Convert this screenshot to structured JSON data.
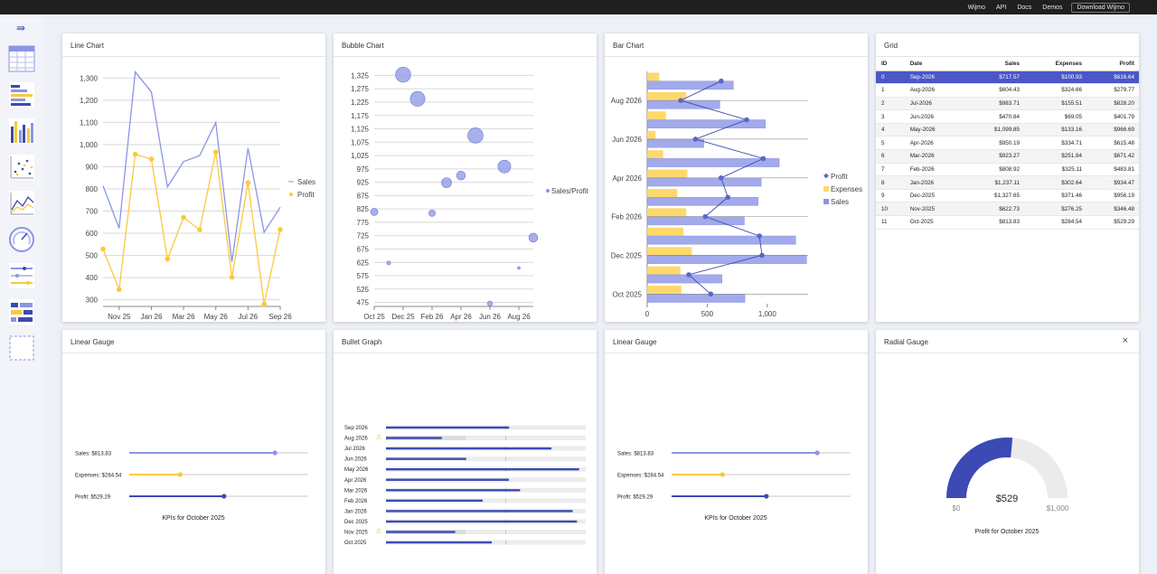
{
  "topnav": [
    "Wijmo",
    "API",
    "Docs",
    "Demos",
    "Download Wijmo"
  ],
  "sidebar": {
    "icons": [
      "menu-collapse-icon",
      "grid-tile-icon",
      "bar-chart-tile-icon",
      "column-chart-tile-icon",
      "scatter-tile-icon",
      "line-chart-tile-icon",
      "radial-gauge-tile-icon",
      "linear-gauge-tile-icon",
      "bullet-graph-tile-icon",
      "empty-tile-icon"
    ]
  },
  "colors": {
    "sales": "#8b95e6",
    "profit": "#fbc93c",
    "navy": "#3b4ab4",
    "expenses": "#fdd96b"
  },
  "cards": {
    "line": {
      "title": "Line Chart"
    },
    "bubble": {
      "title": "Bubble Chart"
    },
    "bar": {
      "title": "Bar Chart"
    },
    "grid": {
      "title": "Grid"
    },
    "lg1": {
      "title": "Linear Gauge"
    },
    "bullet": {
      "title": "Bullet Graph"
    },
    "lg2": {
      "title": "Linear Gauge"
    },
    "radial": {
      "title": "Radial Gauge",
      "close": "×"
    }
  },
  "chart_data": [
    {
      "type": "line",
      "categories": [
        "Oct 25",
        "Nov 25",
        "Dec 25",
        "Jan 26",
        "Feb 26",
        "Mar 26",
        "Apr 26",
        "May 26",
        "Jun 26",
        "Jul 26",
        "Aug 26",
        "Sep 26"
      ],
      "ticks_x": [
        "Nov 25",
        "Jan 26",
        "Mar 26",
        "May 26",
        "Jul 26",
        "Sep 26"
      ],
      "ylim": [
        270,
        1330
      ],
      "yticks": [
        "300",
        "400",
        "500",
        "600",
        "700",
        "800",
        "900",
        "1,000",
        "1,100",
        "1,200",
        "1,300"
      ],
      "series": [
        {
          "name": "Sales",
          "values": [
            813.83,
            622.73,
            1327.65,
            1237.11,
            808.92,
            923.27,
            950.19,
            1099.85,
            470.84,
            983.71,
            604.43,
            717.57
          ]
        },
        {
          "name": "Profit",
          "values": [
            529.29,
            346.48,
            956.19,
            934.47,
            483.81,
            671.42,
            615.48,
            966.69,
            401.79,
            828.2,
            279.77,
            616.64
          ]
        }
      ],
      "grid": true,
      "legend": "right"
    },
    {
      "type": "scatter",
      "xticks": [
        "Oct 25",
        "Dec 25",
        "Feb 26",
        "Apr 26",
        "Jun 26",
        "Aug 26"
      ],
      "yticks": [
        "475",
        "525",
        "575",
        "625",
        "675",
        "725",
        "775",
        "825",
        "875",
        "925",
        "975",
        "1,025",
        "1,075",
        "1,125",
        "1,175",
        "1,225",
        "1,275",
        "1,325"
      ],
      "ylim": [
        460,
        1340
      ],
      "series": [
        {
          "name": "Sales/Profit",
          "x": [
            0,
            1,
            2,
            3,
            4,
            5,
            6,
            7,
            8,
            9,
            10,
            11
          ],
          "y": [
            813.83,
            622.73,
            1327.65,
            1237.11,
            808.92,
            923.27,
            950.19,
            1099.85,
            470.84,
            983.71,
            604.43,
            717.57
          ],
          "size": [
            529.29,
            346.48,
            956.19,
            934.47,
            483.81,
            671.42,
            615.48,
            966.69,
            401.79,
            828.2,
            279.77,
            616.64
          ]
        }
      ],
      "grid": true,
      "legend": "right"
    },
    {
      "type": "bar",
      "orientation": "horizontal",
      "categories": [
        "Sep 2026",
        "Aug 2026",
        "Jul 2026",
        "Jun 2026",
        "May 2026",
        "Apr 2026",
        "Mar 2026",
        "Feb 2026",
        "Jan 2026",
        "Dec 2025",
        "Nov 2025",
        "Oct 2025"
      ],
      "tick_labels": [
        "Aug 2026",
        "Jun 2026",
        "Apr 2026",
        "Feb 2026",
        "Dec 2025",
        "Oct 2025"
      ],
      "xticks": [
        "0",
        "500",
        "1,000"
      ],
      "xlim": [
        0,
        1340
      ],
      "series": [
        {
          "name": "Sales",
          "values": [
            717.57,
            604.43,
            983.71,
            470.84,
            1099.85,
            950.19,
            923.27,
            808.92,
            1237.11,
            1327.65,
            622.73,
            813.83
          ]
        },
        {
          "name": "Expenses",
          "values": [
            100.93,
            324.66,
            155.51,
            69.05,
            133.16,
            334.71,
            251.84,
            325.11,
            302.64,
            371.46,
            276.25,
            284.54
          ]
        },
        {
          "name": "Profit",
          "values": [
            616.64,
            279.77,
            828.2,
            401.79,
            966.69,
            615.48,
            671.42,
            483.81,
            934.47,
            956.19,
            346.48,
            529.29
          ]
        }
      ],
      "legend": "right"
    },
    {
      "type": "table",
      "columns": [
        "ID",
        "Date",
        "Sales",
        "Expenses",
        "Profit"
      ],
      "rows": [
        [
          "0",
          "Sep-2026",
          "$717.57",
          "$100.93",
          "$616.64"
        ],
        [
          "1",
          "Aug-2026",
          "$604.43",
          "$324.66",
          "$279.77"
        ],
        [
          "2",
          "Jul-2026",
          "$983.71",
          "$155.51",
          "$828.20"
        ],
        [
          "3",
          "Jun-2026",
          "$470.84",
          "$69.05",
          "$401.79"
        ],
        [
          "4",
          "May-2026",
          "$1,099.85",
          "$133.16",
          "$966.69"
        ],
        [
          "5",
          "Apr-2026",
          "$950.19",
          "$334.71",
          "$615.48"
        ],
        [
          "6",
          "Mar-2026",
          "$923.27",
          "$251.84",
          "$671.42"
        ],
        [
          "7",
          "Feb-2026",
          "$808.92",
          "$325.11",
          "$483.81"
        ],
        [
          "8",
          "Jan-2026",
          "$1,237.11",
          "$302.64",
          "$934.47"
        ],
        [
          "9",
          "Dec-2025",
          "$1,327.65",
          "$371.46",
          "$956.19"
        ],
        [
          "10",
          "Nov-2025",
          "$622.73",
          "$276.25",
          "$346.48"
        ],
        [
          "11",
          "Oct-2025",
          "$813.83",
          "$284.54",
          "$529.29"
        ]
      ]
    }
  ],
  "linear_gauge": {
    "max": 1000,
    "rows": [
      {
        "label": "Sales: $813.83",
        "value": 813.83,
        "color": "#8b95e6"
      },
      {
        "label": "Expenses: $284.54",
        "value": 284.54,
        "color": "#fbc93c"
      },
      {
        "label": "Profit: $529.29",
        "value": 529.29,
        "color": "#3b4ab4"
      }
    ],
    "caption": "KPIs for October 2025"
  },
  "bullet": {
    "max": 1000,
    "target": 600,
    "rows": [
      {
        "label": "Sep 2026",
        "value": 616.64,
        "warn": false,
        "bad": 0
      },
      {
        "label": "Aug 2026",
        "value": 279.77,
        "warn": true,
        "bad": 400
      },
      {
        "label": "Jul 2026",
        "value": 828.2,
        "warn": false,
        "bad": 0
      },
      {
        "label": "Jun 2026",
        "value": 401.79,
        "warn": false,
        "bad": 0
      },
      {
        "label": "May 2026",
        "value": 966.69,
        "warn": false,
        "bad": 0
      },
      {
        "label": "Apr 2026",
        "value": 615.48,
        "warn": false,
        "bad": 0
      },
      {
        "label": "Mar 2026",
        "value": 671.42,
        "warn": false,
        "bad": 0
      },
      {
        "label": "Feb 2026",
        "value": 483.81,
        "warn": false,
        "bad": 0
      },
      {
        "label": "Jan 2026",
        "value": 934.47,
        "warn": false,
        "bad": 0
      },
      {
        "label": "Dec 2025",
        "value": 956.19,
        "warn": false,
        "bad": 0
      },
      {
        "label": "Nov 2025",
        "value": 346.48,
        "warn": true,
        "bad": 400
      },
      {
        "label": "Oct 2025",
        "value": 529.29,
        "warn": false,
        "bad": 0
      }
    ]
  },
  "radial": {
    "value": 529.29,
    "value_text": "$529",
    "min_text": "$0",
    "max_text": "$1,000",
    "max": 1000,
    "caption": "Profit for October 2025"
  }
}
